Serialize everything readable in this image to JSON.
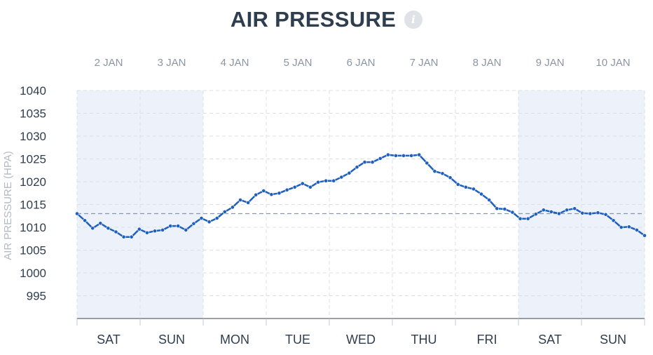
{
  "title": "AIR PRESSURE",
  "info_icon": "i",
  "colors": {
    "line": "#1f5fbf",
    "weekend_band": "#edf2fa",
    "reference_line": "#8a96a8",
    "grid": "#dcdfe4"
  },
  "chart_data": {
    "type": "line",
    "title": "AIR PRESSURE",
    "ylabel": "AIR PRESSURE (HPA)",
    "ylim": [
      990,
      1040
    ],
    "yticks": [
      1040,
      1035,
      1030,
      1025,
      1020,
      1015,
      1010,
      1005,
      1000,
      995
    ],
    "x_range_days": [
      1.5,
      10.5
    ],
    "date_labels": [
      "2 JAN",
      "3 JAN",
      "4 JAN",
      "5 JAN",
      "6 JAN",
      "7 JAN",
      "8 JAN",
      "9 JAN",
      "10 JAN"
    ],
    "day_labels": [
      "SAT",
      "SUN",
      "MON",
      "TUE",
      "WED",
      "THU",
      "FRI",
      "SAT",
      "SUN"
    ],
    "weekend_days": [
      "2 JAN",
      "3 JAN",
      "9 JAN",
      "10 JAN"
    ],
    "reference_value": 1013,
    "grid": true,
    "series": [
      {
        "values": [
          1013,
          1011.5,
          1009.8,
          1010.9,
          1009.8,
          1009,
          1007.9,
          1007.9,
          1009.6,
          1008.8,
          1009.2,
          1009.4,
          1010.3,
          1010.3,
          1009.4,
          1010.8,
          1012,
          1011.2,
          1012,
          1013.4,
          1014.4,
          1016,
          1015.4,
          1017.1,
          1018,
          1017.2,
          1017.5,
          1018.2,
          1018.8,
          1019.6,
          1018.8,
          1019.9,
          1020.2,
          1020.2,
          1021,
          1021.9,
          1023.2,
          1024.3,
          1024.3,
          1025.1,
          1025.9,
          1025.7,
          1025.7,
          1025.7,
          1025.9,
          1024.1,
          1022.3,
          1021.8,
          1020.9,
          1019.4,
          1018.8,
          1018.4,
          1017.3,
          1016,
          1014.1,
          1014,
          1013.3,
          1011.9,
          1011.9,
          1012.9,
          1013.8,
          1013.4,
          1013,
          1013.8,
          1014.1,
          1013.1,
          1013,
          1013.2,
          1012.8,
          1011.5,
          1010,
          1010.1,
          1009.4,
          1008.2
        ]
      }
    ]
  }
}
